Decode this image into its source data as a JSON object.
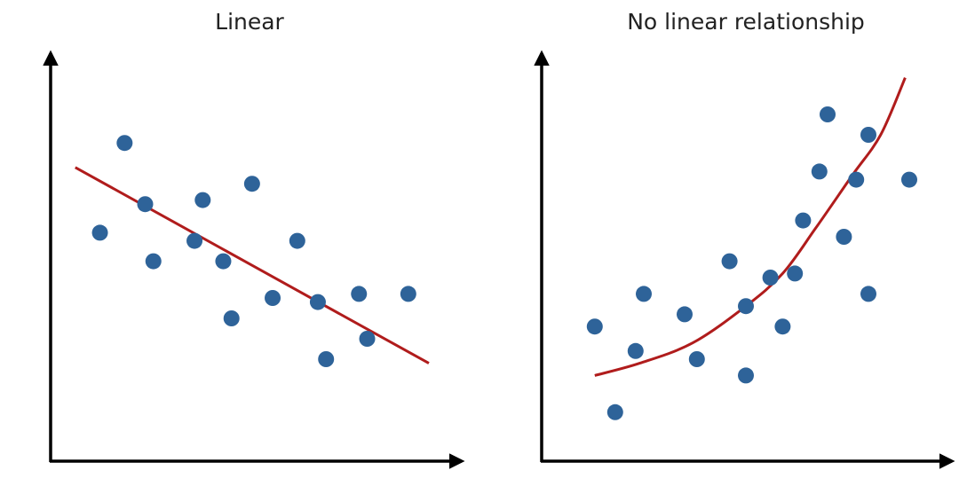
{
  "chart_data": [
    {
      "type": "scatter",
      "title": "Linear",
      "color": "#2e6399",
      "x": [
        1.2,
        1.8,
        2.3,
        2.5,
        3.5,
        3.7,
        4.2,
        4.4,
        4.9,
        5.4,
        6.0,
        6.5,
        6.7,
        7.5,
        7.7,
        8.7
      ],
      "values": [
        5.6,
        7.8,
        6.3,
        4.9,
        5.4,
        6.4,
        4.9,
        3.5,
        6.8,
        4.0,
        5.4,
        3.9,
        2.5,
        4.1,
        3.0,
        4.1
      ],
      "trend": {
        "color": "#b01c1c",
        "x": [
          0.6,
          9.2
        ],
        "values": [
          7.2,
          2.4
        ]
      },
      "xlim": [
        0,
        10
      ],
      "ylim": [
        0,
        10
      ]
    },
    {
      "type": "scatter",
      "title": "No linear relationship",
      "color": "#2e6399",
      "x": [
        1.3,
        1.8,
        2.3,
        2.5,
        3.5,
        3.8,
        4.6,
        5.0,
        5.0,
        5.6,
        5.9,
        6.2,
        6.4,
        6.8,
        7.0,
        7.4,
        7.7,
        8.0,
        8.0,
        9.0
      ],
      "values": [
        3.3,
        1.2,
        2.7,
        4.1,
        3.6,
        2.5,
        4.9,
        3.8,
        2.1,
        4.5,
        3.3,
        4.6,
        5.9,
        7.1,
        8.5,
        5.5,
        6.9,
        8.0,
        4.1,
        6.9
      ],
      "trend": {
        "color": "#b01c1c",
        "x": [
          1.3,
          2.4,
          3.7,
          5.0,
          5.9,
          6.7,
          7.6,
          8.3,
          8.9
        ],
        "values": [
          2.1,
          2.4,
          2.9,
          3.8,
          4.6,
          5.7,
          7.0,
          8.0,
          9.4
        ]
      },
      "xlim": [
        0,
        10
      ],
      "ylim": [
        0,
        10
      ]
    }
  ]
}
